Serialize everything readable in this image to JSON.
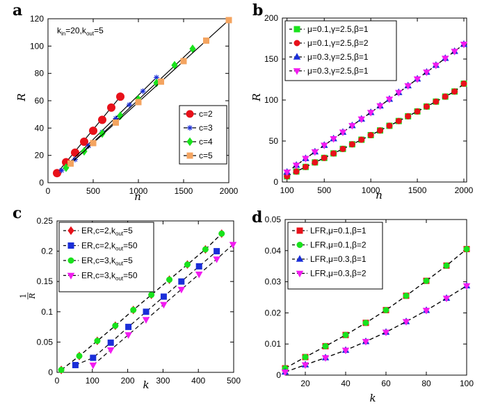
{
  "panel_labels": [
    "a",
    "b",
    "c",
    "d"
  ],
  "chart_data": [
    {
      "type": "line",
      "label": "a",
      "xlabel": "n",
      "ylabel": "R",
      "xlim": [
        0,
        2000
      ],
      "ylim": [
        0,
        120
      ],
      "xticks": [
        0,
        500,
        1000,
        1500,
        2000
      ],
      "yticks": [
        0,
        20,
        40,
        60,
        80,
        100,
        120
      ],
      "annotation": {
        "parts": [
          "k",
          "in",
          "=20,k",
          "out",
          "=5"
        ]
      },
      "legend_position": "bottom-right",
      "series": [
        {
          "name": "c=2",
          "color": "#e8111a",
          "marker": "circle",
          "line": "solid",
          "x": [
            100,
            200,
            300,
            400,
            500,
            600,
            700,
            800
          ],
          "y": [
            7,
            15,
            22,
            30,
            38,
            46,
            55,
            63
          ],
          "fit": [
            [
              100,
              7
            ],
            [
              800,
              63
            ]
          ]
        },
        {
          "name": "c=3",
          "color": "#1a2ed8",
          "marker": "star",
          "line": "solid",
          "x": [
            150,
            300,
            450,
            600,
            750,
            900,
            1050,
            1200
          ],
          "y": [
            9,
            17,
            27,
            37,
            47,
            57,
            67,
            77
          ],
          "fit": [
            [
              150,
              9
            ],
            [
              1200,
              77
            ]
          ]
        },
        {
          "name": "c=4",
          "color": "#19e21c",
          "marker": "diamond",
          "line": "solid",
          "x": [
            200,
            400,
            600,
            800,
            1000,
            1200,
            1400,
            1600
          ],
          "y": [
            11,
            23,
            36,
            49,
            61,
            73,
            86,
            98
          ],
          "fit": [
            [
              200,
              11
            ],
            [
              1600,
              98
            ]
          ]
        },
        {
          "name": "c=5",
          "color": "#f4a460",
          "marker": "square",
          "line": "solid",
          "x": [
            250,
            500,
            750,
            1000,
            1250,
            1500,
            1750,
            2000
          ],
          "y": [
            14,
            29,
            44,
            59,
            74,
            89,
            104,
            119
          ],
          "fit": [
            [
              250,
              14
            ],
            [
              2000,
              119
            ]
          ]
        }
      ]
    },
    {
      "type": "line",
      "label": "b",
      "xlabel": "n",
      "ylabel": "R",
      "xlim": [
        50,
        2030
      ],
      "ylim": [
        0,
        200
      ],
      "xticks": [
        100,
        500,
        1000,
        1500,
        2000
      ],
      "xticklabels": [
        "100",
        "500",
        "1000",
        "1500",
        "2000"
      ],
      "yticks": [
        0,
        50,
        100,
        150,
        200
      ],
      "legend_position": "top-left",
      "series": [
        {
          "name": "μ=0.1,γ=2.5,β=1",
          "color": "#19e21c",
          "marker": "square",
          "line": "dashed",
          "x": [
            100,
            200,
            300,
            400,
            500,
            600,
            700,
            800,
            900,
            1000,
            1100,
            1200,
            1300,
            1400,
            1500,
            1600,
            1700,
            1800,
            1900,
            2000
          ],
          "y": [
            6.9,
            12.8,
            18.4,
            23.9,
            29.4,
            34.9,
            40.4,
            46,
            51.6,
            57.2,
            62.9,
            68.6,
            74.4,
            80.2,
            86.1,
            92.1,
            98.1,
            104.2,
            110.4,
            120
          ]
        },
        {
          "name": "μ=0.1,γ=2.5,β=2",
          "color": "#e8111a",
          "marker": "circle",
          "line": "dashed",
          "x": [
            100,
            200,
            300,
            400,
            500,
            600,
            700,
            800,
            900,
            1000,
            1100,
            1200,
            1300,
            1400,
            1500,
            1600,
            1700,
            1800,
            1900,
            2000
          ],
          "y": [
            7,
            12.8,
            18.4,
            23.9,
            29.4,
            34.9,
            40.4,
            46,
            51.6,
            57.2,
            62.9,
            68.6,
            74.4,
            80.2,
            86.1,
            92.1,
            98.1,
            104.2,
            110.4,
            120
          ]
        },
        {
          "name": "μ=0.3,γ=2.5,β=1",
          "color": "#1a2ed8",
          "marker": "triangle-up",
          "line": "dashed",
          "x": [
            100,
            200,
            300,
            400,
            500,
            600,
            700,
            800,
            900,
            1000,
            1100,
            1200,
            1300,
            1400,
            1500,
            1600,
            1700,
            1800,
            1900,
            2000
          ],
          "y": [
            12,
            20.5,
            28.7,
            36.8,
            44.8,
            52.8,
            60.8,
            68.8,
            76.8,
            84.8,
            92.9,
            101,
            109.2,
            117.4,
            125.7,
            134,
            142.4,
            150.9,
            159.4,
            168
          ]
        },
        {
          "name": "μ=0.3,γ=2.5,β=1",
          "color": "#f21bf0",
          "marker": "triangle-down",
          "line": "dashed",
          "x": [
            100,
            200,
            300,
            400,
            500,
            600,
            700,
            800,
            900,
            1000,
            1100,
            1200,
            1300,
            1400,
            1500,
            1600,
            1700,
            1800,
            1900,
            2000
          ],
          "y": [
            12,
            20.5,
            28.7,
            36.8,
            44.8,
            52.8,
            60.8,
            68.8,
            76.8,
            84.8,
            92.9,
            101,
            109.2,
            117.4,
            125.7,
            134,
            142.4,
            150.9,
            159.4,
            168
          ]
        }
      ]
    },
    {
      "type": "line",
      "label": "c",
      "xlabel": "k",
      "ylabel": "1/R",
      "ylabel_parts": {
        "num": "1",
        "den": "R"
      },
      "xlim": [
        0,
        500
      ],
      "ylim": [
        0,
        0.25
      ],
      "xticks": [
        0,
        100,
        200,
        300,
        400,
        500
      ],
      "yticks": [
        0,
        0.05,
        0.1,
        0.15,
        0.2,
        0.25
      ],
      "legend_position": "top-left",
      "series": [
        {
          "name": "ER,c=2,k_out=5",
          "name_parts": [
            "ER,c=2,k",
            "out",
            "=5"
          ],
          "color": "#e8111a",
          "marker": "diamond",
          "line": "dashed",
          "x": [
            12,
            63,
            114,
            165,
            216,
            267,
            318,
            369,
            420,
            466
          ],
          "y": [
            0.004,
            0.027,
            0.052,
            0.077,
            0.103,
            0.128,
            0.153,
            0.178,
            0.203,
            0.229
          ]
        },
        {
          "name": "ER,c=2,k_out=50",
          "name_parts": [
            "ER,c=2,k",
            "out",
            "=50"
          ],
          "color": "#1a2ed8",
          "marker": "square",
          "line": "dashed",
          "x": [
            52,
            102,
            152,
            202,
            252,
            302,
            352,
            402,
            452
          ],
          "y": [
            0.012,
            0.024,
            0.049,
            0.075,
            0.1,
            0.125,
            0.15,
            0.175,
            0.2
          ]
        },
        {
          "name": "ER,c=3,k_out=5",
          "name_parts": [
            "ER,c=3,k",
            "out",
            "=5"
          ],
          "color": "#19e21c",
          "marker": "circle",
          "line": "dashed",
          "x": [
            12,
            63,
            114,
            165,
            216,
            267,
            318,
            369,
            420,
            466
          ],
          "y": [
            0.004,
            0.027,
            0.052,
            0.077,
            0.103,
            0.128,
            0.153,
            0.178,
            0.203,
            0.229
          ]
        },
        {
          "name": "ER,c=3,k_out=50",
          "name_parts": [
            "ER,c=3,k",
            "out",
            "=50"
          ],
          "color": "#f21bf0",
          "marker": "triangle-down",
          "line": "dashed",
          "x": [
            102,
            152,
            202,
            252,
            302,
            352,
            402,
            452,
            498
          ],
          "y": [
            0.012,
            0.037,
            0.062,
            0.087,
            0.112,
            0.137,
            0.162,
            0.187,
            0.211
          ]
        }
      ]
    },
    {
      "type": "line",
      "label": "d",
      "xlabel": "k",
      "ylabel": "",
      "xlim": [
        10,
        100
      ],
      "ylim": [
        0,
        0.05
      ],
      "xticks": [
        20,
        40,
        60,
        80,
        100
      ],
      "yticks": [
        0,
        0.01,
        0.02,
        0.03,
        0.04,
        0.05
      ],
      "legend_position": "top-left",
      "series": [
        {
          "name": "LFR,μ=0.1,β=1",
          "color": "#e8111a",
          "marker": "square",
          "line": "dashed",
          "x": [
            10,
            20,
            30,
            40,
            50,
            60,
            70,
            80,
            90,
            100
          ],
          "y": [
            0.0022,
            0.0058,
            0.0093,
            0.0129,
            0.0168,
            0.0209,
            0.0255,
            0.0303,
            0.0352,
            0.0405
          ]
        },
        {
          "name": "LFR,μ=0.1,β=2",
          "color": "#19e21c",
          "marker": "circle",
          "line": "dashed",
          "x": [
            10,
            20,
            30,
            40,
            50,
            60,
            70,
            80,
            90,
            100
          ],
          "y": [
            0.0022,
            0.0058,
            0.0093,
            0.0129,
            0.0168,
            0.0209,
            0.0255,
            0.0303,
            0.0352,
            0.0405
          ]
        },
        {
          "name": "LFR,μ=0.3,β=1",
          "color": "#1a2ed8",
          "marker": "triangle-up",
          "line": "dashed",
          "x": [
            10,
            20,
            30,
            40,
            50,
            60,
            70,
            80,
            90,
            100
          ],
          "y": [
            0.001,
            0.0033,
            0.0056,
            0.008,
            0.0108,
            0.0138,
            0.0172,
            0.0208,
            0.0247,
            0.0287
          ]
        },
        {
          "name": "LFR,μ=0.3,β=2",
          "color": "#f21bf0",
          "marker": "triangle-down",
          "line": "dashed",
          "x": [
            10,
            20,
            30,
            40,
            50,
            60,
            70,
            80,
            90,
            100
          ],
          "y": [
            0.001,
            0.0033,
            0.0056,
            0.008,
            0.0108,
            0.0138,
            0.0172,
            0.0208,
            0.0247,
            0.0287
          ]
        }
      ]
    }
  ]
}
